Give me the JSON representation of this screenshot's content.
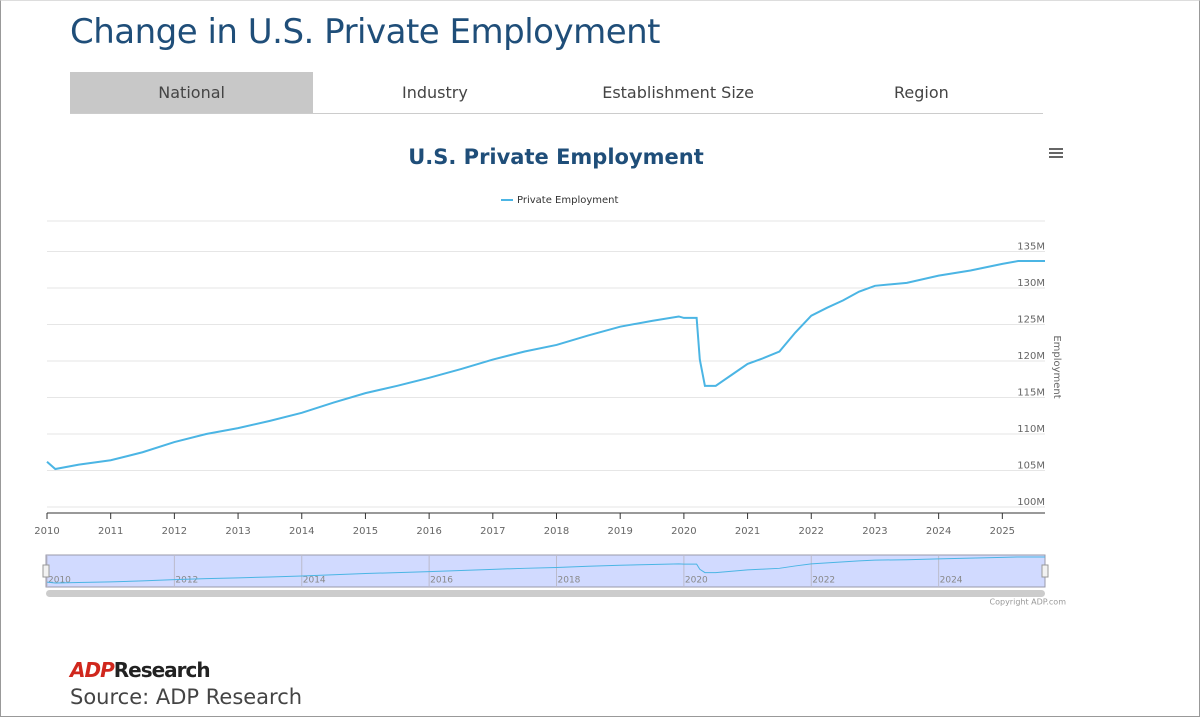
{
  "header": {
    "title": "Change in U.S. Private Employment"
  },
  "tabs": [
    "National",
    "Industry",
    "Establishment Size",
    "Region"
  ],
  "chart_data": {
    "type": "line",
    "title": "U.S. Private Employment",
    "y_label": "Employment",
    "x": [
      2010.0,
      2010.13,
      2010.5,
      2011.0,
      2011.5,
      2012.0,
      2012.5,
      2013.0,
      2013.5,
      2014.0,
      2014.5,
      2015.0,
      2015.5,
      2016.0,
      2016.5,
      2017.0,
      2017.5,
      2018.0,
      2018.5,
      2019.0,
      2019.5,
      2019.92,
      2020.0,
      2020.2,
      2020.25,
      2020.33,
      2020.5,
      2020.75,
      2021.0,
      2021.25,
      2021.5,
      2021.75,
      2022.0,
      2022.25,
      2022.5,
      2022.75,
      2023.0,
      2023.5,
      2024.0,
      2024.5,
      2025.0,
      2025.25,
      2025.67
    ],
    "series": [
      {
        "name": "Private Employment",
        "color": "#4bb5e4",
        "values": [
          106.2,
          105.2,
          105.8,
          106.4,
          107.5,
          108.9,
          110.0,
          110.8,
          111.8,
          112.9,
          114.3,
          115.6,
          116.6,
          117.7,
          118.9,
          120.2,
          121.3,
          122.2,
          123.5,
          124.7,
          125.5,
          126.1,
          125.9,
          125.9,
          120.2,
          116.6,
          116.6,
          118.1,
          119.6,
          120.4,
          121.3,
          123.9,
          126.2,
          127.3,
          128.3,
          129.5,
          130.3,
          130.7,
          131.7,
          132.4,
          133.3,
          133.7,
          133.7
        ]
      }
    ],
    "xlim": [
      2010,
      2025.67
    ],
    "xticks": [
      2010,
      2011,
      2012,
      2013,
      2014,
      2015,
      2016,
      2017,
      2018,
      2019,
      2020,
      2021,
      2022,
      2023,
      2024,
      2025
    ],
    "ylim": [
      100,
      140
    ],
    "yticks": [
      {
        "value": 100,
        "label": "100M"
      },
      {
        "value": 105,
        "label": "105M"
      },
      {
        "value": 110,
        "label": "110M"
      },
      {
        "value": 115,
        "label": "115M"
      },
      {
        "value": 120,
        "label": "120M"
      },
      {
        "value": 125,
        "label": "125M"
      },
      {
        "value": 130,
        "label": "130M"
      },
      {
        "value": 135,
        "label": "135M"
      }
    ],
    "grid": true,
    "navigator_ticks": [
      2010,
      2012,
      2014,
      2016,
      2018,
      2020,
      2022,
      2024
    ],
    "credit": "Copyright ADP.com"
  },
  "footer": {
    "logo_brand": "ADP",
    "logo_name": "Research",
    "source": "Source: ADP Research"
  }
}
